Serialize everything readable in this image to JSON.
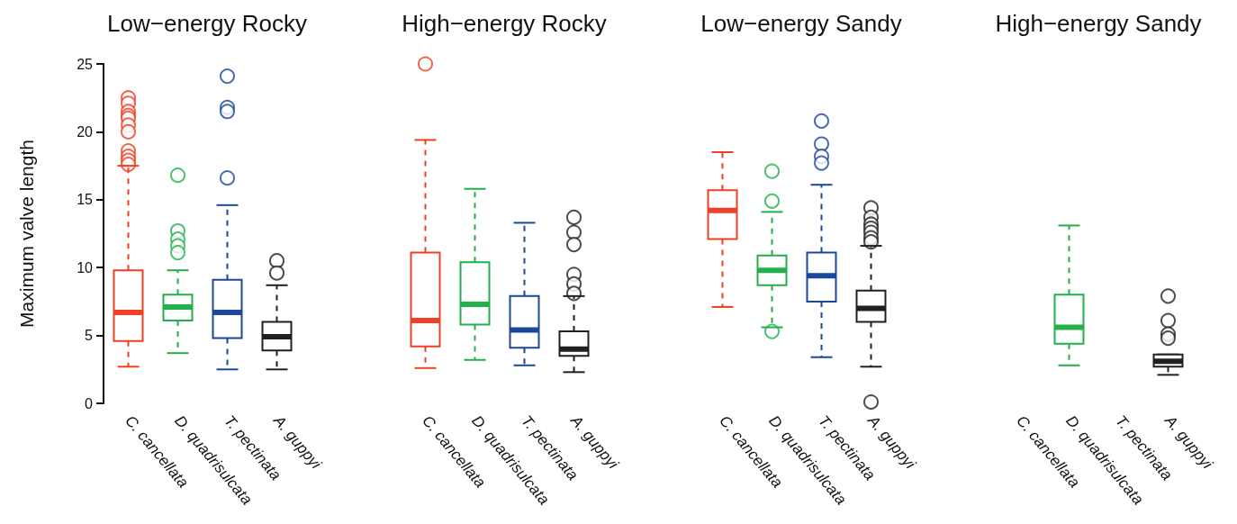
{
  "chart_data": [
    {
      "type": "box",
      "title": "Low−energy Rocky",
      "ylabel": "Maximum valve length",
      "categories": [
        "C. cancellata",
        "D. quadrisulcata",
        "T. pectinata",
        "A. guppyi"
      ],
      "colors": [
        "#ee4023",
        "#22b04b",
        "#1b479c",
        "#231f20"
      ],
      "ylim": [
        0,
        25
      ],
      "yticks": [
        0,
        5,
        10,
        15,
        20,
        25
      ],
      "grid": false,
      "boxes": [
        {
          "low": 2.7,
          "q1": 4.6,
          "median": 6.7,
          "q3": 9.8,
          "high": 17.5,
          "outliers": [
            22.5,
            22.1,
            21.5,
            21.2,
            21.0,
            20.5,
            20.0,
            18.6,
            18.2,
            17.9,
            17.6
          ]
        },
        {
          "low": 3.7,
          "q1": 6.1,
          "median": 7.1,
          "q3": 8.0,
          "high": 9.8,
          "outliers": [
            16.8,
            12.7,
            12.1,
            11.6,
            11.1
          ]
        },
        {
          "low": 2.5,
          "q1": 4.8,
          "median": 6.7,
          "q3": 9.1,
          "high": 14.6,
          "outliers": [
            24.1,
            21.8,
            21.5,
            16.6
          ]
        },
        {
          "low": 2.5,
          "q1": 3.9,
          "median": 4.9,
          "q3": 6.0,
          "high": 8.7,
          "outliers": [
            10.5,
            9.6
          ]
        }
      ]
    },
    {
      "type": "box",
      "title": "High−energy Rocky",
      "categories": [
        "C. cancellata",
        "D. quadrisulcata",
        "T. pectinata",
        "A. guppyi"
      ],
      "colors": [
        "#ee4023",
        "#22b04b",
        "#1b479c",
        "#231f20"
      ],
      "ylim": [
        0,
        25
      ],
      "tick_labels": "x",
      "grid": false,
      "boxes": [
        {
          "low": 2.6,
          "q1": 4.2,
          "median": 6.1,
          "q3": 11.1,
          "high": 19.4,
          "outliers": [
            25.0
          ]
        },
        {
          "low": 3.2,
          "q1": 5.8,
          "median": 7.3,
          "q3": 10.4,
          "high": 15.8
        },
        {
          "low": 2.8,
          "q1": 4.1,
          "median": 5.4,
          "q3": 7.9,
          "high": 13.3
        },
        {
          "low": 2.3,
          "q1": 3.5,
          "median": 4.0,
          "q3": 5.3,
          "high": 7.9,
          "outliers": [
            13.7,
            12.6,
            11.7,
            9.5,
            8.8,
            8.1
          ]
        }
      ]
    },
    {
      "type": "box",
      "title": "Low−energy Sandy",
      "categories": [
        "C. cancellata",
        "D. quadrisulcata",
        "T. pectinata",
        "A. guppyi"
      ],
      "colors": [
        "#ee4023",
        "#22b04b",
        "#1b479c",
        "#231f20"
      ],
      "ylim": [
        0,
        25
      ],
      "tick_labels": "x",
      "grid": false,
      "boxes": [
        {
          "low": 7.1,
          "q1": 12.1,
          "median": 14.2,
          "q3": 15.7,
          "high": 18.5
        },
        {
          "low": 5.6,
          "q1": 8.7,
          "median": 9.8,
          "q3": 10.9,
          "high": 14.1,
          "outliers": [
            17.1,
            14.9,
            5.3
          ]
        },
        {
          "low": 3.4,
          "q1": 7.5,
          "median": 9.4,
          "q3": 11.1,
          "high": 16.1,
          "outliers": [
            20.8,
            19.1,
            18.2,
            17.7
          ]
        },
        {
          "low": 2.7,
          "q1": 6.0,
          "median": 7.0,
          "q3": 8.3,
          "high": 11.6,
          "outliers": [
            14.4,
            13.7,
            13.2,
            12.9,
            12.6,
            12.2,
            11.9,
            0.1
          ]
        }
      ]
    },
    {
      "type": "box",
      "title": "High−energy Sandy",
      "categories": [
        "C. cancellata",
        "D. quadrisulcata",
        "T. pectinata",
        "A. guppyi"
      ],
      "colors": [
        null,
        "#22b04b",
        null,
        "#231f20"
      ],
      "ylim": [
        0,
        25
      ],
      "tick_labels": "x",
      "grid": false,
      "boxes": [
        null,
        {
          "low": 2.8,
          "q1": 4.4,
          "median": 5.6,
          "q3": 8.0,
          "high": 13.1
        },
        null,
        {
          "low": 2.1,
          "q1": 2.7,
          "median": 3.1,
          "q3": 3.6,
          "high": 3.6,
          "outliers": [
            7.9,
            6.1,
            5.1,
            4.8
          ]
        }
      ]
    }
  ]
}
